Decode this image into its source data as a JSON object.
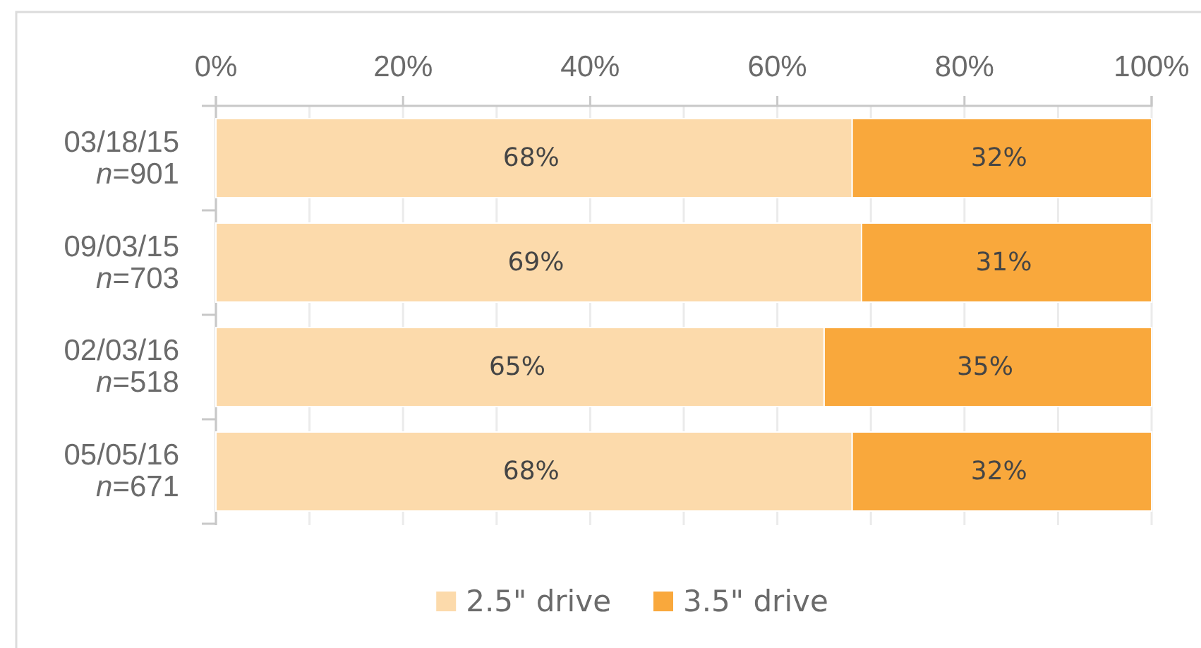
{
  "chart_data": {
    "type": "bar",
    "orientation": "horizontal",
    "stacked": true,
    "categories": [
      "03/18/15\nn=901",
      "09/03/15\nn=703",
      "02/03/16\nn=518",
      "05/05/16\nn=671"
    ],
    "series": [
      {
        "name": "2.5\" drive",
        "color": "#fcdaab",
        "values": [
          68,
          69,
          65,
          68
        ],
        "value_labels": [
          "68%",
          "69%",
          "65%",
          "68%"
        ]
      },
      {
        "name": "3.5\" drive",
        "color": "#f9a83c",
        "values": [
          32,
          31,
          35,
          32
        ],
        "value_labels": [
          "32%",
          "31%",
          "35%",
          "32%"
        ]
      }
    ],
    "xlim": [
      0,
      100
    ],
    "xticks": [
      {
        "value": 0,
        "label": "0%"
      },
      {
        "value": 10,
        "label": null
      },
      {
        "value": 20,
        "label": "20%"
      },
      {
        "value": 30,
        "label": null
      },
      {
        "value": 40,
        "label": "40%"
      },
      {
        "value": 50,
        "label": null
      },
      {
        "value": 60,
        "label": "60%"
      },
      {
        "value": 70,
        "label": null
      },
      {
        "value": 80,
        "label": "80%"
      },
      {
        "value": 90,
        "label": null
      },
      {
        "value": 100,
        "label": "100%"
      }
    ],
    "grid": "x",
    "legend": "bottom"
  }
}
